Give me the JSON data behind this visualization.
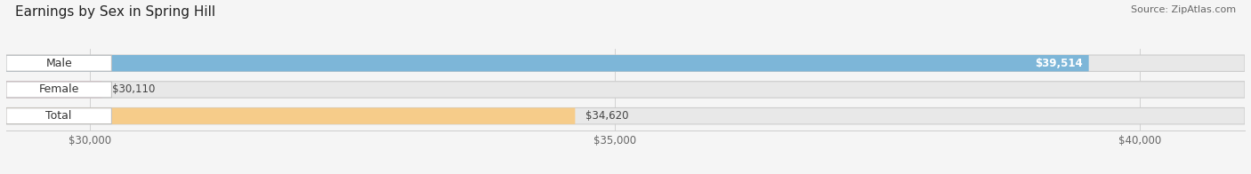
{
  "title": "Earnings by Sex in Spring Hill",
  "source": "Source: ZipAtlas.com",
  "categories": [
    "Male",
    "Female",
    "Total"
  ],
  "values": [
    39514,
    30110,
    34620
  ],
  "bar_colors": [
    "#6baed6",
    "#f4a0b5",
    "#f9c87a"
  ],
  "bar_bg_color": "#e0e0e0",
  "xmin": 29200,
  "xmax": 41000,
  "xticks": [
    30000,
    35000,
    40000
  ],
  "xtick_labels": [
    "$30,000",
    "$35,000",
    "$40,000"
  ],
  "value_labels": [
    "$39,514",
    "$30,110",
    "$34,620"
  ],
  "figsize": [
    14.06,
    1.96
  ],
  "dpi": 100,
  "title_fontsize": 11,
  "source_fontsize": 8,
  "bar_label_fontsize": 9,
  "value_label_fontsize": 8.5,
  "axis_label_fontsize": 8.5,
  "bar_height": 0.62,
  "bg_color": "#f5f5f5"
}
